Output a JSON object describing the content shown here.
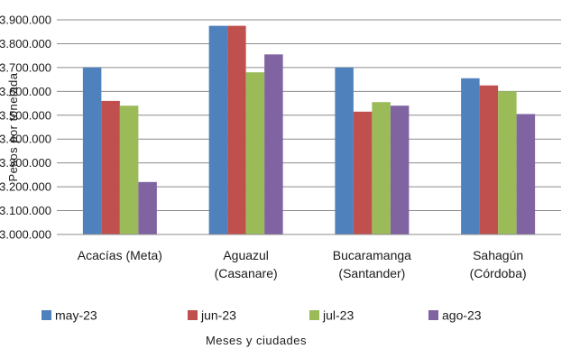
{
  "chart_data": {
    "type": "bar",
    "title": "",
    "xlabel": "Meses y ciudades",
    "ylabel": "Pesos por tonelada",
    "ylim": [
      3000000,
      3900000
    ],
    "ytick_step": 100000,
    "ytick_labels": [
      "3.000.000",
      "3.100.000",
      "3.200.000",
      "3.300.000",
      "3.400.000",
      "3.500.000",
      "3.600.000",
      "3.700.000",
      "3.800.000",
      "3.900.000"
    ],
    "grid": true,
    "legend_position": "bottom",
    "categories": [
      [
        "Acacías (Meta)"
      ],
      [
        "Aguazul",
        "(Casanare)"
      ],
      [
        "Bucaramanga",
        "(Santander)"
      ],
      [
        "Sahagún",
        "(Córdoba)"
      ]
    ],
    "series": [
      {
        "name": "may-23",
        "color": "#4F81BD",
        "values": [
          3700000,
          3875000,
          3700000,
          3655000
        ]
      },
      {
        "name": "jun-23",
        "color": "#C0504D",
        "values": [
          3560000,
          3875000,
          3515000,
          3625000
        ]
      },
      {
        "name": "jul-23",
        "color": "#9BBB59",
        "values": [
          3540000,
          3680000,
          3555000,
          3600000
        ]
      },
      {
        "name": "ago-23",
        "color": "#8064A2",
        "values": [
          3220000,
          3755000,
          3540000,
          3505000
        ]
      }
    ]
  }
}
